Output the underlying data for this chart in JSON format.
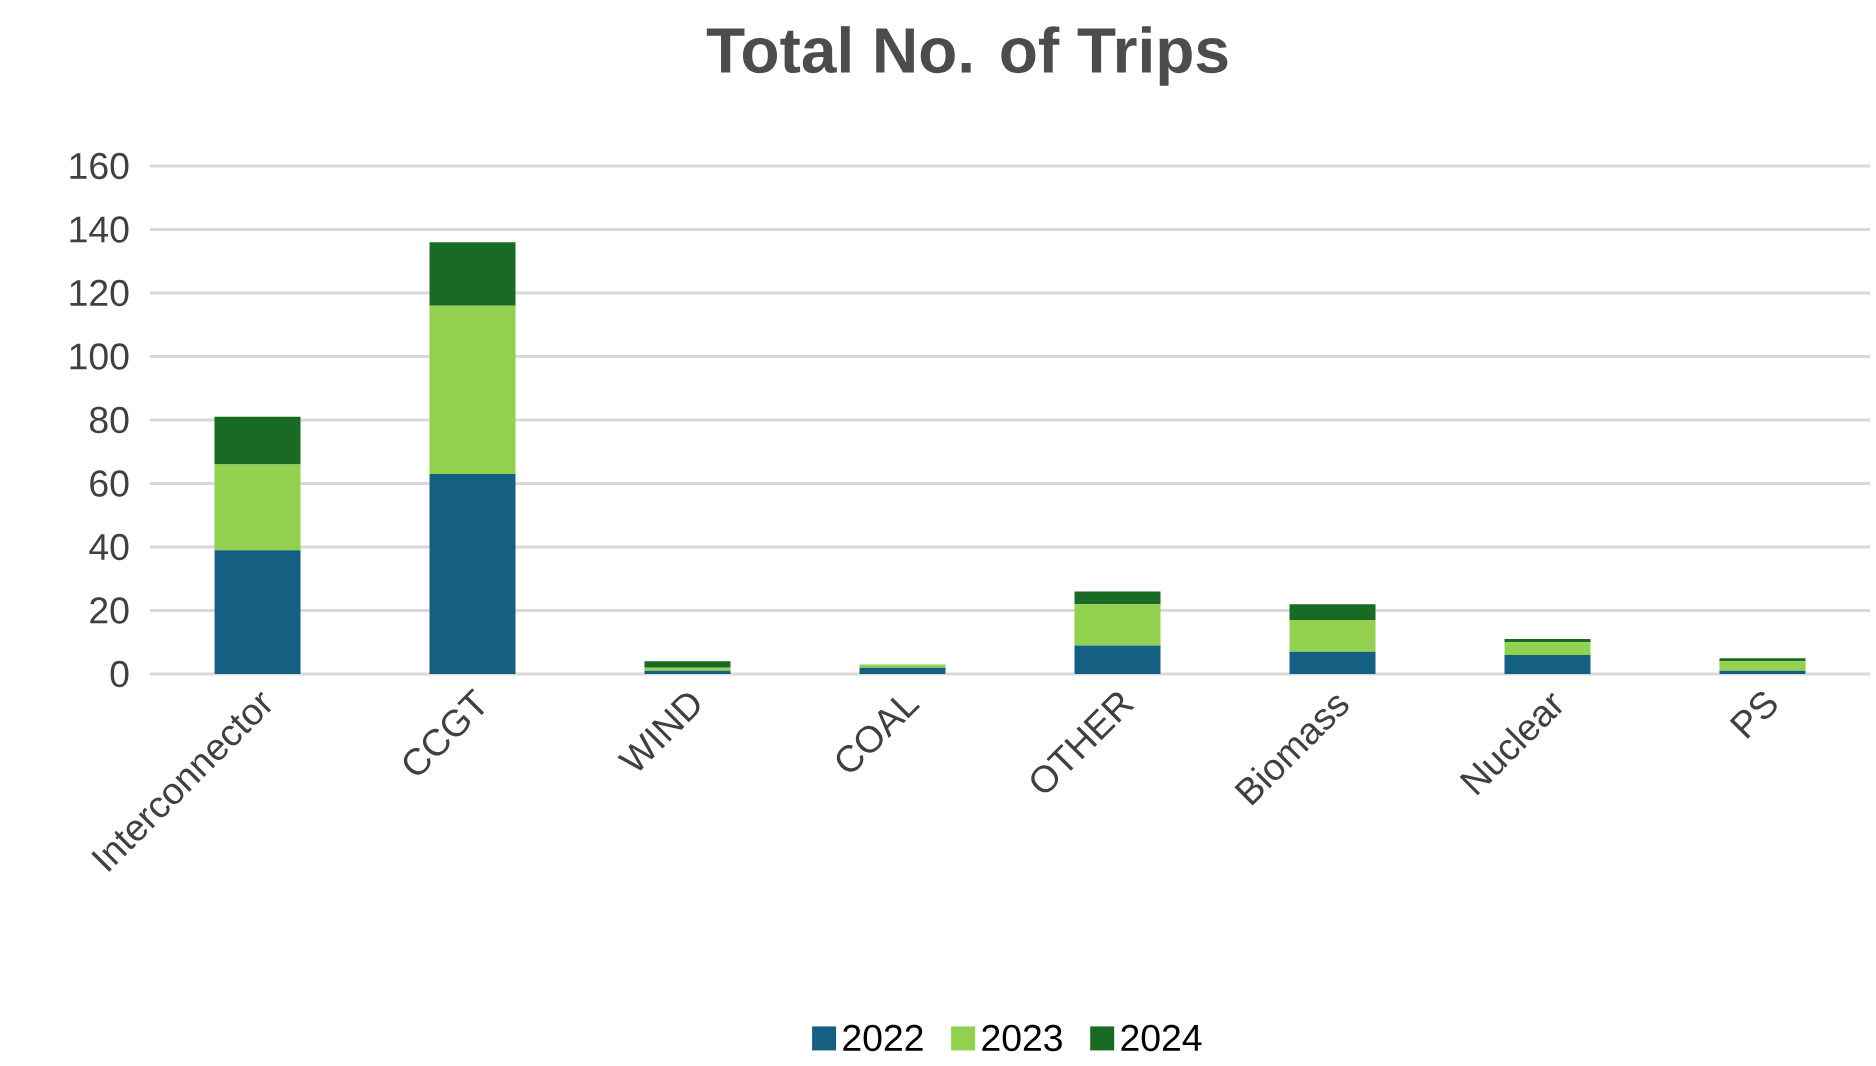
{
  "chart_data": {
    "type": "bar",
    "title": "Total No. of Trips",
    "stacked": true,
    "categories": [
      "Interconnector",
      "CCGT",
      "WIND",
      "COAL",
      "OTHER",
      "Biomass",
      "Nuclear",
      "PS"
    ],
    "series": [
      {
        "name": "2022",
        "color": "#156082",
        "values": [
          39,
          63,
          1,
          2,
          9,
          7,
          6,
          1
        ]
      },
      {
        "name": "2023",
        "color": "#92d050",
        "values": [
          27,
          53,
          1,
          1,
          13,
          10,
          4,
          3
        ]
      },
      {
        "name": "2024",
        "color": "#196b24",
        "values": [
          15,
          20,
          2,
          0,
          4,
          5,
          1,
          1
        ]
      }
    ],
    "ylim": [
      0,
      160
    ],
    "yticks": [
      0,
      20,
      40,
      60,
      80,
      100,
      120,
      140,
      160
    ],
    "grid": "y",
    "legend": "bottom"
  }
}
